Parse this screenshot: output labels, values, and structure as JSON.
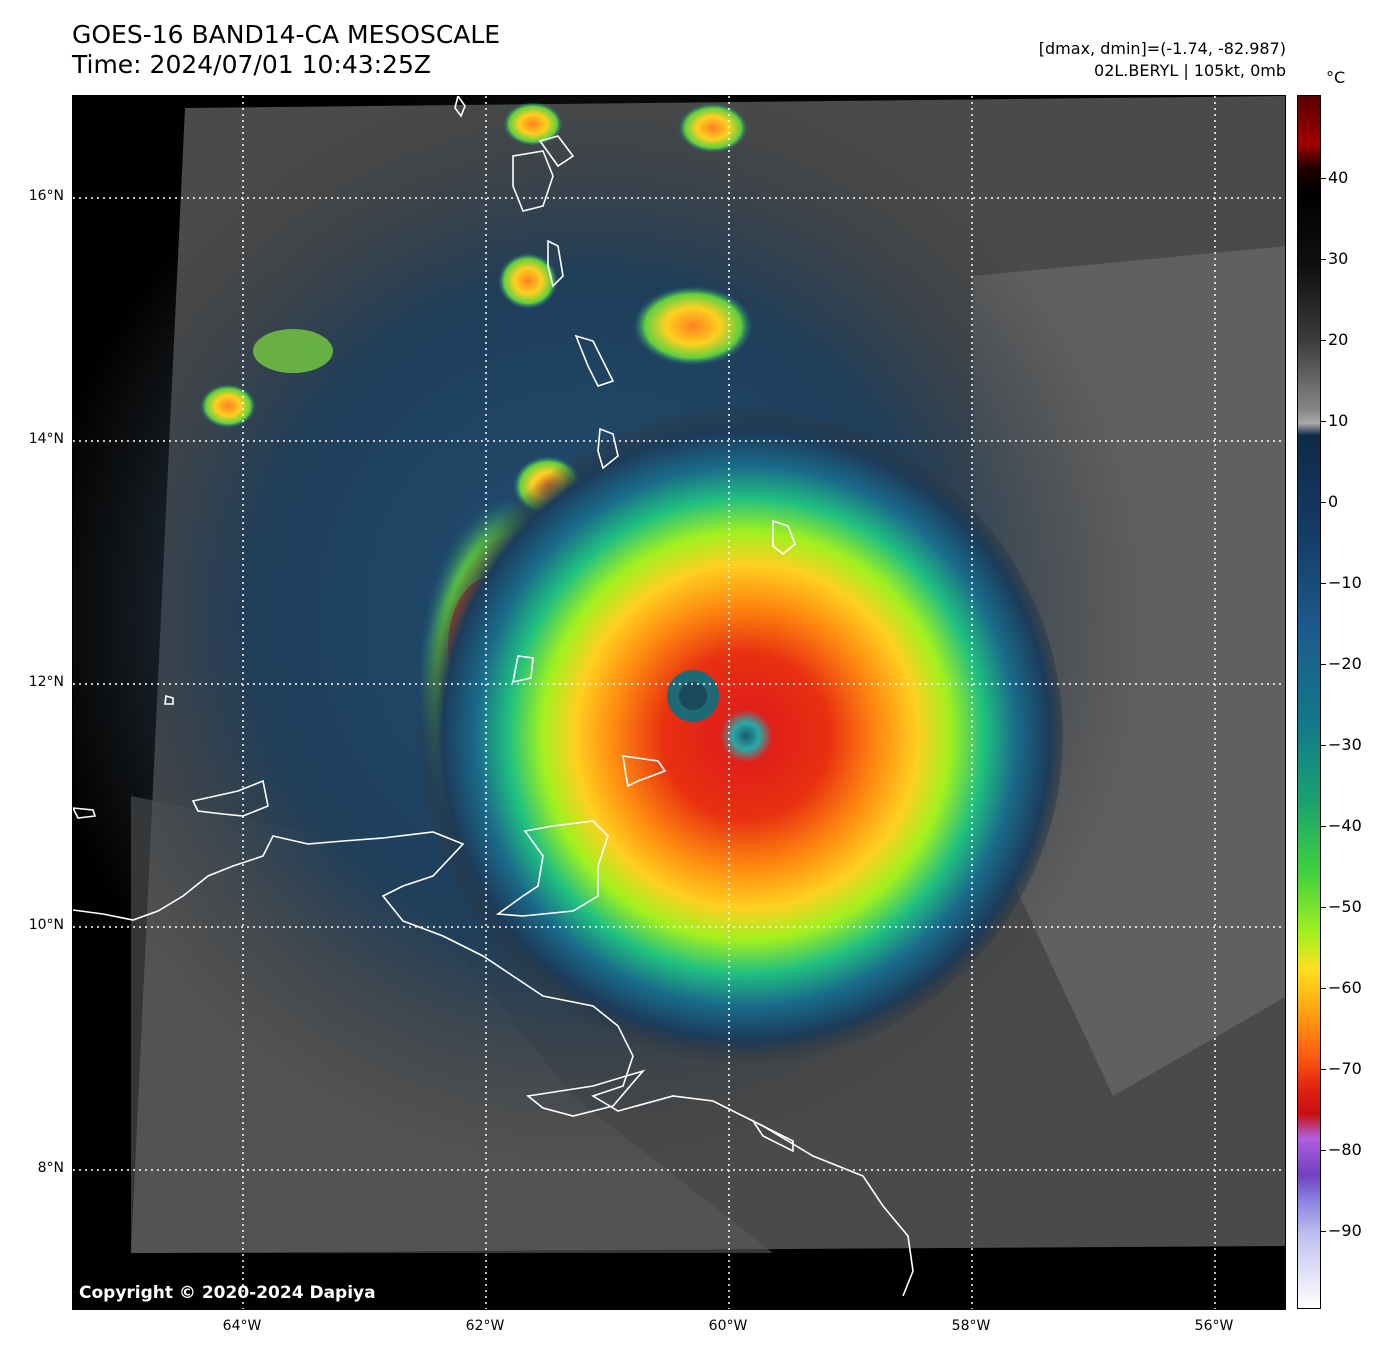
{
  "header": {
    "title_line1": "GOES-16 BAND14-CA MESOSCALE",
    "title_line2": "Time: 2024/07/01 10:43:25Z",
    "info_line1": "[dmax, dmin]=(-1.74, -82.987)",
    "info_line2": "02L.BERYL | 105kt, 0mb"
  },
  "map": {
    "copyright": "Copyright © 2020-2024 Dapiya",
    "lat_labels": [
      "16°N",
      "14°N",
      "12°N",
      "10°N",
      "8°N"
    ],
    "lon_labels": [
      "64°W",
      "62°W",
      "60°W",
      "58°W",
      "56°W"
    ]
  },
  "colorbar": {
    "unit": "°C",
    "ticks": [
      "40",
      "30",
      "20",
      "10",
      "0",
      "−10",
      "−20",
      "−30",
      "−40",
      "−50",
      "−60",
      "−70",
      "−80",
      "−90"
    ]
  }
}
